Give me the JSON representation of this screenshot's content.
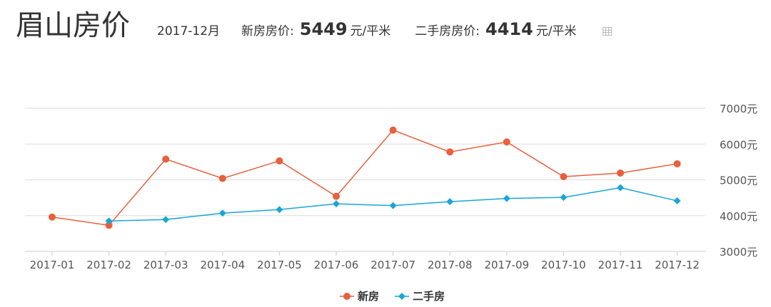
{
  "header": {
    "city_title": "眉山房价",
    "period": "2017-12月",
    "new_label": "新房房价:",
    "new_value": "5449",
    "new_unit": "元/平米",
    "second_label": "二手房房价:",
    "second_value": "4414",
    "second_unit": "元/平米",
    "table_icon": "table-icon"
  },
  "colors": {
    "new_series": "#e8603c",
    "second_series": "#1aa6d6",
    "grid": "#dddddd"
  },
  "chart_data": {
    "type": "line",
    "categories": [
      "2017-01",
      "2017-02",
      "2017-03",
      "2017-04",
      "2017-05",
      "2017-06",
      "2017-07",
      "2017-08",
      "2017-09",
      "2017-10",
      "2017-11",
      "2017-12"
    ],
    "series": [
      {
        "name": "新房",
        "marker": "circle",
        "values": [
          3960,
          3730,
          5580,
          5040,
          5530,
          4540,
          6390,
          5780,
          6060,
          5090,
          5190,
          5449
        ]
      },
      {
        "name": "二手房",
        "marker": "diamond",
        "values": [
          null,
          3850,
          3890,
          4070,
          4170,
          4330,
          4280,
          4390,
          4480,
          4510,
          4780,
          4414
        ]
      }
    ],
    "yticks": [
      "3000元",
      "4000元",
      "5000元",
      "6000元",
      "7000元"
    ],
    "ytick_values": [
      3000,
      4000,
      5000,
      6000,
      7000
    ],
    "ylim": [
      3000,
      7000
    ],
    "grid": true,
    "y_axis_side": "right",
    "legend_position": "bottom-center"
  }
}
